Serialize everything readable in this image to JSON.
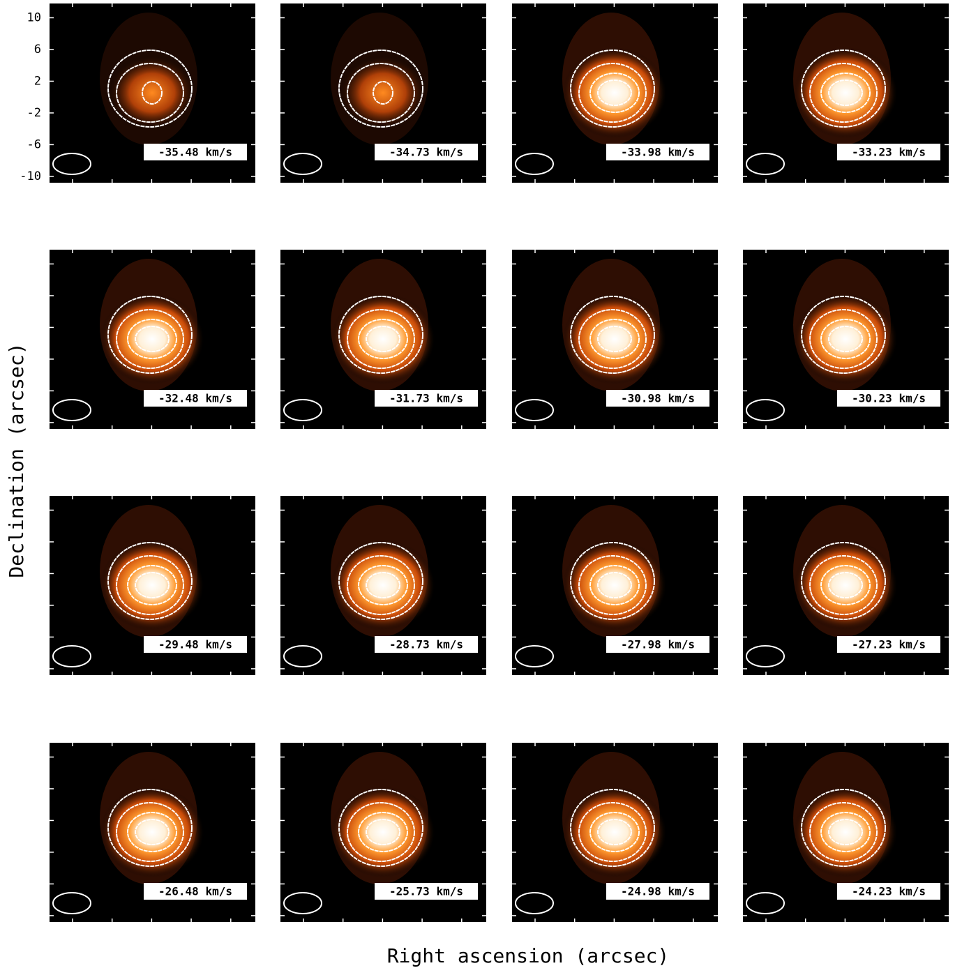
{
  "chart_data": {
    "type": "channel_map",
    "xlabel": "Right ascension (arcsec)",
    "ylabel": "Declination (arcsec)",
    "ylim": [
      -10.8,
      11.8
    ],
    "yticks": [
      -10,
      -6,
      -2,
      2,
      6,
      10
    ],
    "panels": [
      "-35.48 km/s",
      "-34.73 km/s",
      "-33.98 km/s",
      "-33.23 km/s",
      "-32.48 km/s",
      "-31.73 km/s",
      "-30.98 km/s",
      "-30.23 km/s",
      "-29.48 km/s",
      "-28.73 km/s",
      "-27.98 km/s",
      "-27.23 km/s",
      "-26.48 km/s",
      "-25.73 km/s",
      "-24.98 km/s",
      "-24.23 km/s"
    ]
  }
}
